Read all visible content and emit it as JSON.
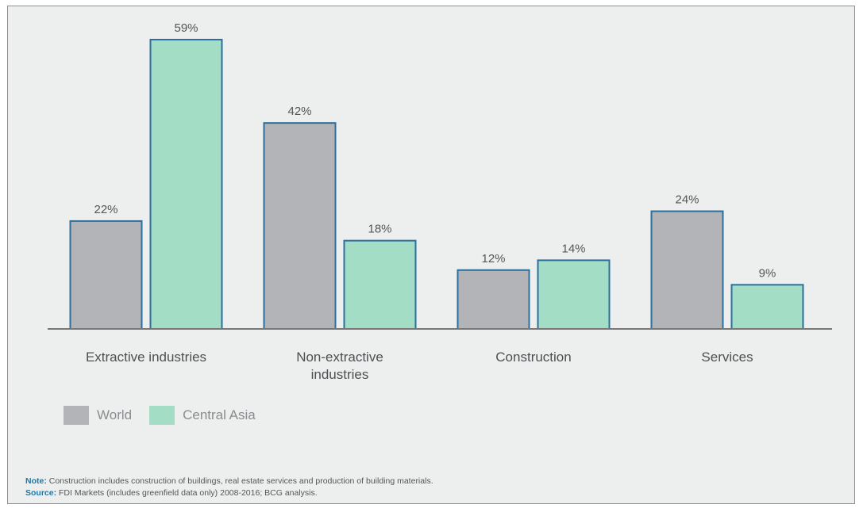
{
  "chart_data": {
    "type": "bar",
    "categories": [
      "Extractive industries",
      "Non-extractive industries",
      "Construction",
      "Services"
    ],
    "category_lines": [
      [
        "Extractive industries"
      ],
      [
        "Non-extractive",
        "industries"
      ],
      [
        "Construction"
      ],
      [
        "Services"
      ]
    ],
    "series": [
      {
        "name": "World",
        "values": [
          22,
          42,
          12,
          24
        ],
        "labels": [
          "22%",
          "42%",
          "12%",
          "24%"
        ],
        "color": "#b3b4b7"
      },
      {
        "name": "Central Asia",
        "values": [
          59,
          18,
          14,
          9
        ],
        "labels": [
          "59%",
          "18%",
          "14%",
          "9%"
        ],
        "color": "#a3ddc6"
      }
    ],
    "ylim": [
      0,
      59
    ],
    "grid": false,
    "legend_position": "bottom-left",
    "bar_border_color": "#2a6f9e",
    "baseline_color": "#777777"
  },
  "notes": {
    "note_label": "Note:",
    "note_text": " Construction includes construction of buildings, real estate services and production of building materials.",
    "source_label": "Source:",
    "source_text": " FDI Markets (includes greenfield data only) 2008-2016; BCG analysis."
  }
}
